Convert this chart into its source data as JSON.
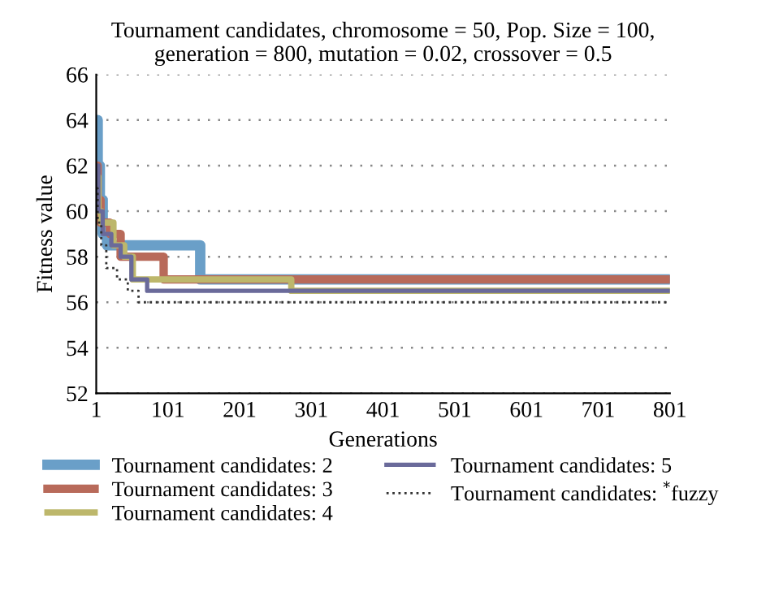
{
  "chart_data": {
    "type": "step",
    "title": "Tournament candidates, chromosome = 50, Pop. Size = 100,\ngeneration = 800, mutation = 0.02, crossover = 0.5",
    "xlabel": "Generations",
    "ylabel": "Fitness value",
    "xlim": [
      1,
      801
    ],
    "xticks": [
      1,
      101,
      201,
      301,
      401,
      501,
      601,
      701,
      801
    ],
    "ylim": [
      52,
      66
    ],
    "yticks": [
      52,
      54,
      56,
      58,
      60,
      62,
      64,
      66
    ],
    "grid": "y",
    "legend": "bottom",
    "series": [
      {
        "name": "Tournament candidates: 2",
        "color": "#6a9fc8",
        "x": [
          1,
          3,
          6,
          10,
          16,
          146,
          801
        ],
        "values": [
          64,
          62,
          60.5,
          59,
          58.5,
          57,
          57
        ]
      },
      {
        "name": "Tournament candidates: 3",
        "color": "#b86a5a",
        "x": [
          1,
          3,
          7,
          20,
          35,
          95,
          801
        ],
        "values": [
          62,
          60.5,
          59.5,
          59,
          58,
          57,
          57
        ]
      },
      {
        "name": "Tournament candidates: 4",
        "color": "#bdb76b",
        "x": [
          1,
          4,
          8,
          25,
          40,
          52,
          273,
          801
        ],
        "values": [
          61.5,
          60,
          59.5,
          58.5,
          58,
          57,
          56.5,
          56.5
        ]
      },
      {
        "name": "Tournament candidates: 5",
        "color": "#6a6a9a",
        "x": [
          1,
          4,
          10,
          22,
          35,
          50,
          72,
          801
        ],
        "values": [
          62,
          60,
          59,
          58.5,
          58,
          57,
          56.5,
          56.5
        ]
      },
      {
        "name": "Tournament candidates: $^{*}$fuzzy",
        "color": "#333333",
        "line_style": "dotted",
        "x": [
          1,
          3,
          8,
          15,
          30,
          45,
          60,
          801
        ],
        "values": [
          61,
          59.5,
          58.5,
          57.5,
          57,
          56.5,
          56,
          56
        ]
      }
    ]
  }
}
